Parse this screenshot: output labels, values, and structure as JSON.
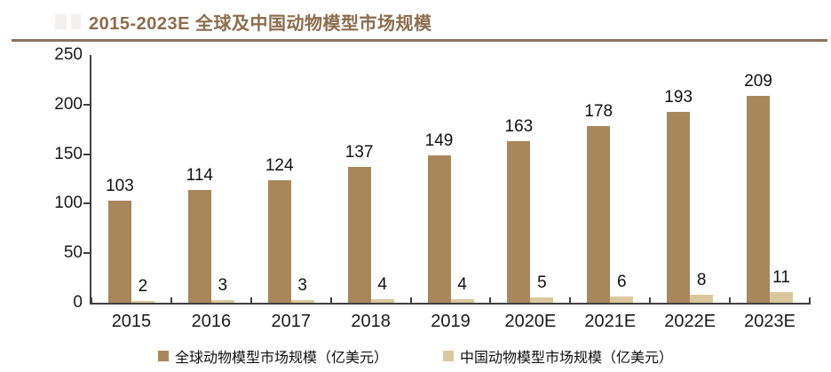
{
  "header": {
    "title": "2015-2023E 全球及中国动物模型市场规模"
  },
  "chart_data": {
    "type": "bar",
    "title": "2015-2023E 全球及中国动物模型市场规模",
    "categories": [
      "2015",
      "2016",
      "2017",
      "2018",
      "2019",
      "2020E",
      "2021E",
      "2022E",
      "2023E"
    ],
    "series": [
      {
        "name": "全球动物模型市场规模（亿美元）",
        "color": "#A8875D",
        "values": [
          103,
          114,
          124,
          137,
          149,
          163,
          178,
          193,
          209
        ]
      },
      {
        "name": "中国动物模型市场规模（亿美元）",
        "color": "#D9C89C",
        "values": [
          2,
          3,
          3,
          4,
          4,
          5,
          6,
          8,
          11
        ]
      }
    ],
    "xlabel": "",
    "ylabel": "",
    "ylim": [
      0,
      250
    ],
    "yticks": [
      0,
      50,
      100,
      150,
      200,
      250
    ],
    "grid": false,
    "legend_position": "bottom",
    "value_labels": true
  },
  "colors": {
    "title": "#8C6D4C",
    "divider": "#8A7464",
    "axis": "#404040",
    "text": "#1a1a1a"
  }
}
